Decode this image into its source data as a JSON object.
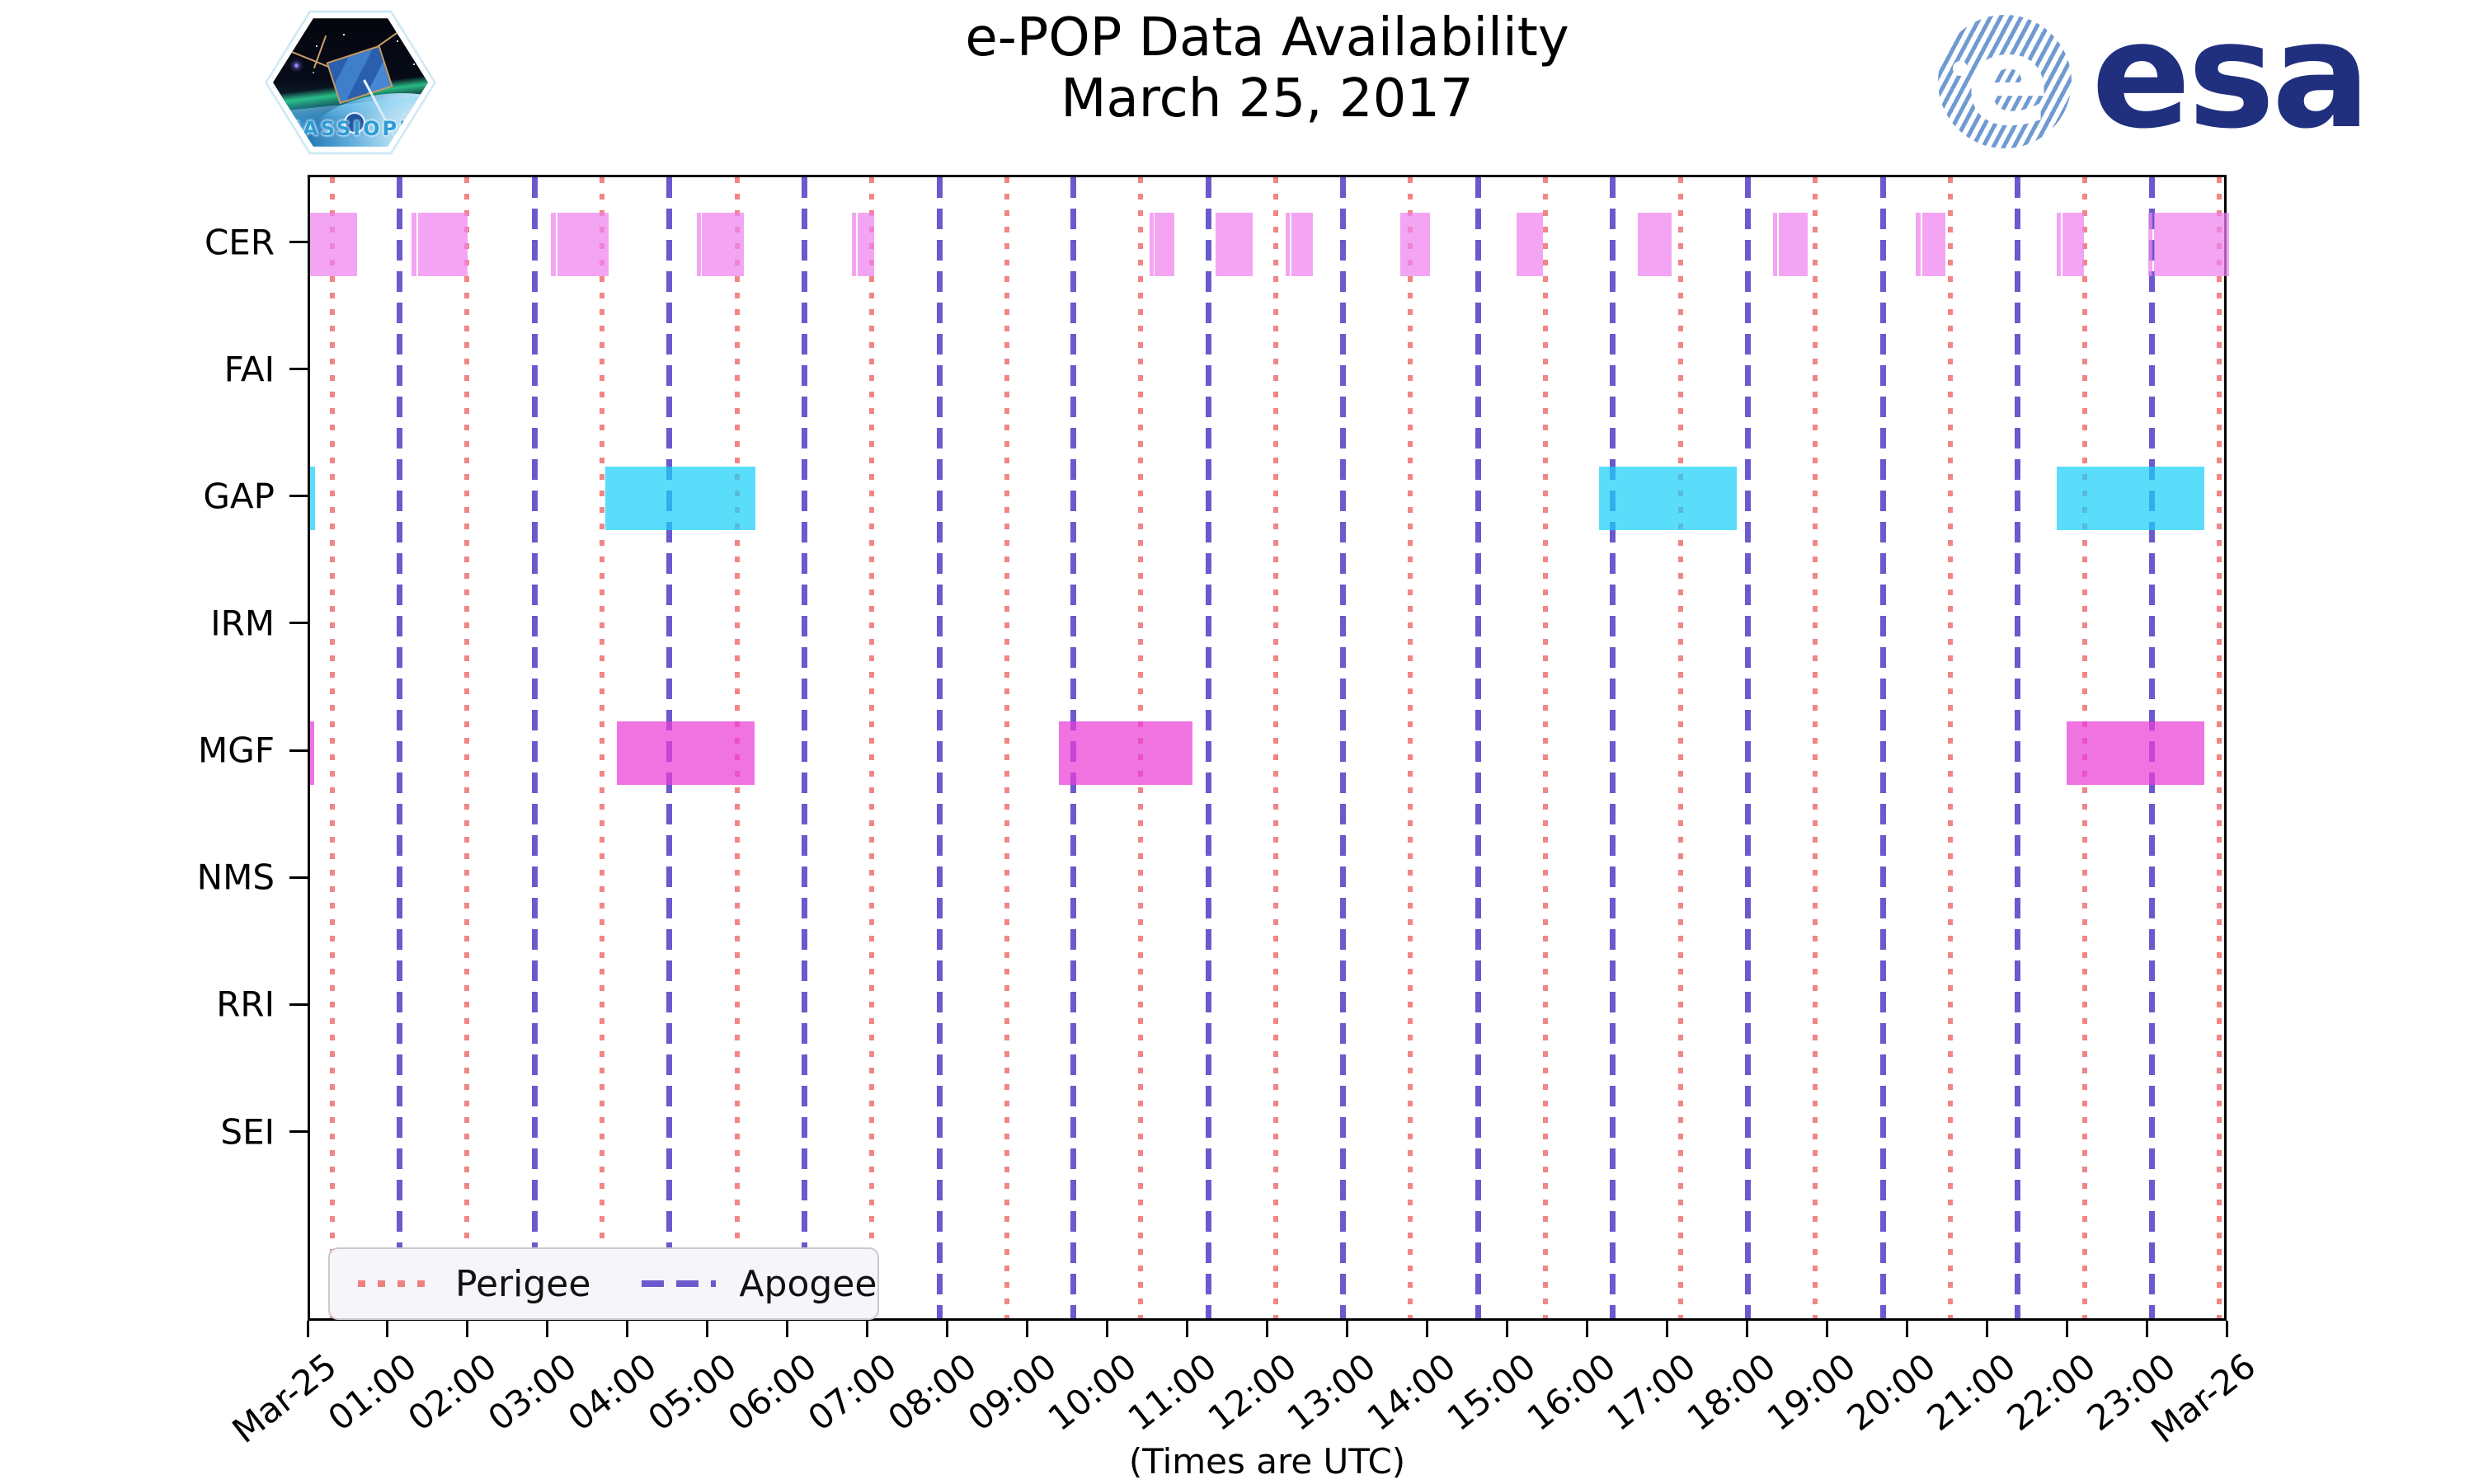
{
  "title": {
    "line1": "e-POP Data Availability",
    "line2": "March 25, 2017"
  },
  "cassiope_badge": {
    "label": "CASSIOPE"
  },
  "esa_logo": {
    "word": "esa",
    "e_glyph": "e"
  },
  "xlabel": "(Times are UTC)",
  "legend": {
    "items": [
      {
        "label": "Perigee",
        "style": "dotted",
        "color": "#f08080"
      },
      {
        "label": "Apogee",
        "style": "dashed",
        "color": "#6a5acd"
      }
    ]
  },
  "chart_data": {
    "type": "availability-timeline",
    "title": "e-POP Data Availability March 25, 2017",
    "xlabel": "(Times are UTC)",
    "x_range_hours": [
      0,
      24
    ],
    "x_tick_labels": [
      "Mar-25",
      "01:00",
      "02:00",
      "03:00",
      "04:00",
      "05:00",
      "06:00",
      "07:00",
      "08:00",
      "09:00",
      "10:00",
      "11:00",
      "12:00",
      "13:00",
      "14:00",
      "15:00",
      "16:00",
      "17:00",
      "18:00",
      "19:00",
      "20:00",
      "21:00",
      "22:00",
      "23:00",
      "Mar-26"
    ],
    "categories": [
      "CER",
      "FAI",
      "GAP",
      "IRM",
      "MGF",
      "NMS",
      "RRI",
      "SEI"
    ],
    "series": [
      {
        "name": "CER",
        "color": "rgba(238,130,238,0.72)",
        "intervals_hours": [
          [
            0.0,
            0.59
          ],
          [
            1.27,
            1.33
          ],
          [
            1.35,
            1.97
          ],
          [
            3.01,
            3.07
          ],
          [
            3.09,
            3.73
          ],
          [
            4.84,
            4.88
          ],
          [
            4.9,
            5.43
          ],
          [
            6.78,
            6.83
          ],
          [
            6.85,
            7.05
          ],
          [
            10.5,
            10.54
          ],
          [
            10.56,
            10.81
          ],
          [
            11.32,
            11.79
          ],
          [
            12.2,
            12.25
          ],
          [
            12.27,
            12.54
          ],
          [
            13.63,
            14.01
          ],
          [
            15.09,
            15.42
          ],
          [
            16.6,
            17.03
          ],
          [
            18.3,
            18.35
          ],
          [
            18.37,
            18.73
          ],
          [
            20.08,
            20.14
          ],
          [
            20.16,
            20.45
          ],
          [
            21.84,
            21.9
          ],
          [
            21.92,
            22.18
          ],
          [
            22.99,
            23.04
          ],
          [
            23.06,
            24.0
          ]
        ]
      },
      {
        "name": "FAI",
        "color": "rgba(238,130,238,0.72)",
        "intervals_hours": []
      },
      {
        "name": "GAP",
        "color": "rgba(26,208,248,0.72)",
        "intervals_hours": [
          [
            0.0,
            0.06
          ],
          [
            3.69,
            5.57
          ],
          [
            16.12,
            17.84
          ],
          [
            21.84,
            23.69
          ]
        ]
      },
      {
        "name": "IRM",
        "color": "rgba(26,208,248,0.72)",
        "intervals_hours": []
      },
      {
        "name": "MGF",
        "color": "rgba(234,61,215,0.72)",
        "intervals_hours": [
          [
            0.0,
            0.05
          ],
          [
            3.84,
            5.56
          ],
          [
            9.37,
            11.04
          ],
          [
            21.97,
            23.69
          ]
        ]
      },
      {
        "name": "NMS",
        "color": "rgba(234,61,215,0.72)",
        "intervals_hours": []
      },
      {
        "name": "RRI",
        "color": "rgba(234,61,215,0.72)",
        "intervals_hours": []
      },
      {
        "name": "SEI",
        "color": "rgba(234,61,215,0.72)",
        "intervals_hours": []
      }
    ],
    "perigee_hours": [
      0.28,
      1.96,
      3.65,
      5.34,
      7.02,
      8.71,
      10.39,
      12.08,
      13.76,
      15.45,
      17.14,
      18.82,
      20.51,
      22.19,
      23.88
    ],
    "apogee_hours": [
      1.12,
      2.81,
      4.49,
      6.18,
      7.87,
      9.55,
      11.24,
      12.92,
      14.61,
      16.29,
      17.98,
      19.67,
      21.35,
      23.04
    ],
    "legend": [
      "Perigee",
      "Apogee"
    ],
    "grid": false,
    "legend_position": "lower left"
  }
}
